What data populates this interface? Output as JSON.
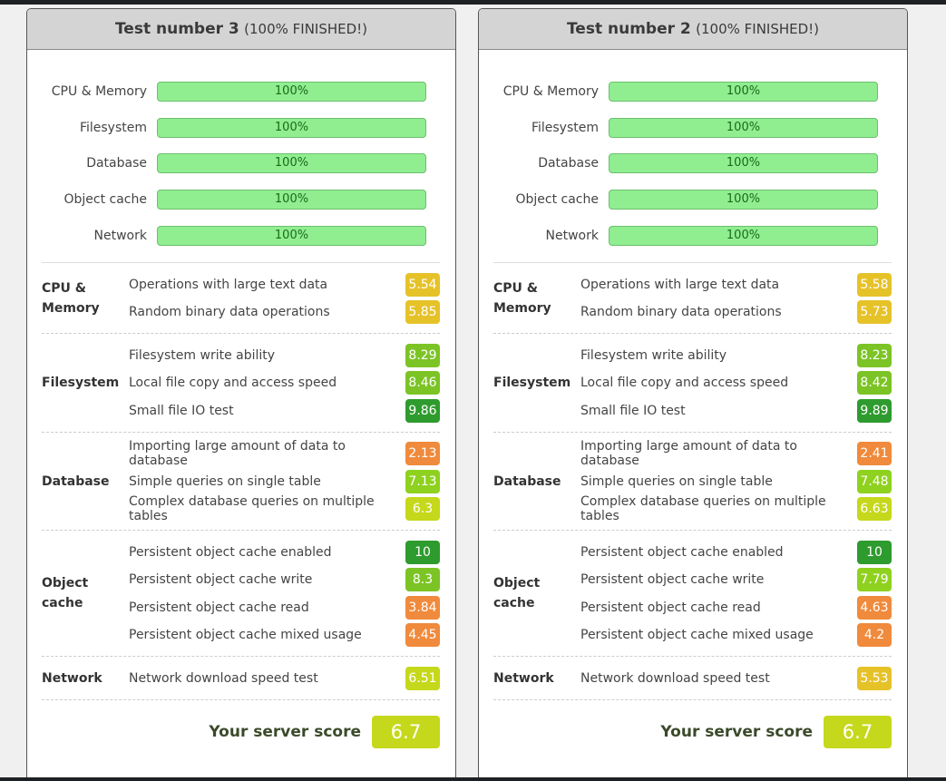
{
  "panels": [
    {
      "title": "Test number 3",
      "status": "(100% FINISHED!)",
      "progress": [
        {
          "label": "CPU & Memory",
          "value": "100%",
          "percent": 100
        },
        {
          "label": "Filesystem",
          "value": "100%",
          "percent": 100
        },
        {
          "label": "Database",
          "value": "100%",
          "percent": 100
        },
        {
          "label": "Object cache",
          "value": "100%",
          "percent": 100
        },
        {
          "label": "Network",
          "value": "100%",
          "percent": 100
        }
      ],
      "sections": [
        {
          "name": "CPU & Memory",
          "items": [
            {
              "label": "Operations with large text data",
              "score": "5.54",
              "color": "#e6c229"
            },
            {
              "label": "Random binary data operations",
              "score": "5.85",
              "color": "#e6c229"
            }
          ]
        },
        {
          "name": "Filesystem",
          "items": [
            {
              "label": "Filesystem write ability",
              "score": "8.29",
              "color": "#7cc425"
            },
            {
              "label": "Local file copy and access speed",
              "score": "8.46",
              "color": "#7cc425"
            },
            {
              "label": "Small file IO test",
              "score": "9.86",
              "color": "#2e9b2e"
            }
          ]
        },
        {
          "name": "Database",
          "items": [
            {
              "label": "Importing large amount of data to database",
              "score": "2.13",
              "color": "#f08a3c"
            },
            {
              "label": "Simple queries on single table",
              "score": "7.13",
              "color": "#8fd11f"
            },
            {
              "label": "Complex database queries on multiple tables",
              "score": "6.3",
              "color": "#c5d81b"
            }
          ]
        },
        {
          "name": "Object cache",
          "items": [
            {
              "label": "Persistent object cache enabled",
              "score": "10",
              "color": "#2e9b2e"
            },
            {
              "label": "Persistent object cache write",
              "score": "8.3",
              "color": "#7cc425"
            },
            {
              "label": "Persistent object cache read",
              "score": "3.84",
              "color": "#f08a3c"
            },
            {
              "label": "Persistent object cache mixed usage",
              "score": "4.45",
              "color": "#f08a3c"
            }
          ]
        },
        {
          "name": "Network",
          "items": [
            {
              "label": "Network download speed test",
              "score": "6.51",
              "color": "#c5d81b"
            }
          ]
        }
      ],
      "score_label": "Your server score",
      "score": "6.7"
    },
    {
      "title": "Test number 2",
      "status": "(100% FINISHED!)",
      "progress": [
        {
          "label": "CPU & Memory",
          "value": "100%",
          "percent": 100
        },
        {
          "label": "Filesystem",
          "value": "100%",
          "percent": 100
        },
        {
          "label": "Database",
          "value": "100%",
          "percent": 100
        },
        {
          "label": "Object cache",
          "value": "100%",
          "percent": 100
        },
        {
          "label": "Network",
          "value": "100%",
          "percent": 100
        }
      ],
      "sections": [
        {
          "name": "CPU & Memory",
          "items": [
            {
              "label": "Operations with large text data",
              "score": "5.58",
              "color": "#e6c229"
            },
            {
              "label": "Random binary data operations",
              "score": "5.73",
              "color": "#e6c229"
            }
          ]
        },
        {
          "name": "Filesystem",
          "items": [
            {
              "label": "Filesystem write ability",
              "score": "8.23",
              "color": "#7cc425"
            },
            {
              "label": "Local file copy and access speed",
              "score": "8.42",
              "color": "#7cc425"
            },
            {
              "label": "Small file IO test",
              "score": "9.89",
              "color": "#2e9b2e"
            }
          ]
        },
        {
          "name": "Database",
          "items": [
            {
              "label": "Importing large amount of data to database",
              "score": "2.41",
              "color": "#f08a3c"
            },
            {
              "label": "Simple queries on single table",
              "score": "7.48",
              "color": "#8fd11f"
            },
            {
              "label": "Complex database queries on multiple tables",
              "score": "6.63",
              "color": "#c5d81b"
            }
          ]
        },
        {
          "name": "Object cache",
          "items": [
            {
              "label": "Persistent object cache enabled",
              "score": "10",
              "color": "#2e9b2e"
            },
            {
              "label": "Persistent object cache write",
              "score": "7.79",
              "color": "#8fd11f"
            },
            {
              "label": "Persistent object cache read",
              "score": "4.63",
              "color": "#f08a3c"
            },
            {
              "label": "Persistent object cache mixed usage",
              "score": "4.2",
              "color": "#f08a3c"
            }
          ]
        },
        {
          "name": "Network",
          "items": [
            {
              "label": "Network download speed test",
              "score": "5.53",
              "color": "#e6c229"
            }
          ]
        }
      ],
      "score_label": "Your server score",
      "score": "6.7"
    }
  ]
}
